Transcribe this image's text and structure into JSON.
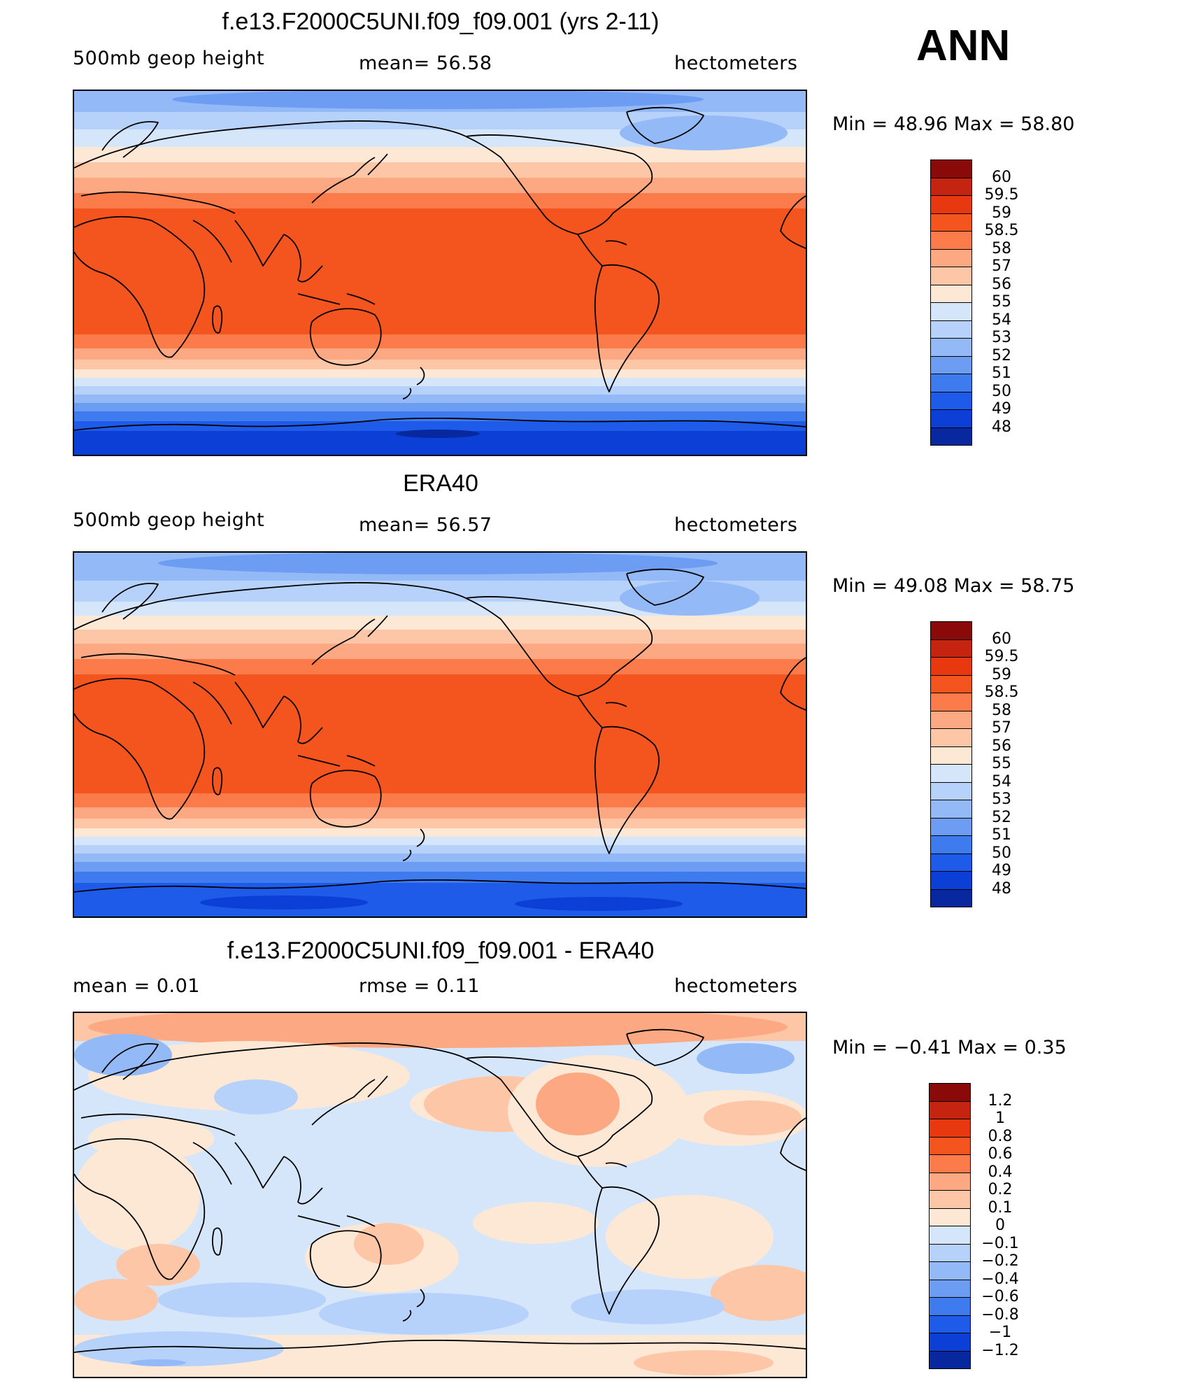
{
  "season": "ANN",
  "colors": {
    "warm": [
      "#fde8d6",
      "#fdc6a6",
      "#fca882",
      "#fb7b4b",
      "#f4541e",
      "#e8380f",
      "#c52410",
      "#8a0a0a"
    ],
    "cool": [
      "#d5e6fb",
      "#b6d2fa",
      "#94b9f7",
      "#6d9df3",
      "#3e7bef",
      "#1d5be8",
      "#0c3fd6",
      "#07289e",
      "#040e6e"
    ]
  },
  "panels": [
    {
      "title": "f.e13.F2000C5UNI.f09_f09.001 (yrs 2-11)",
      "left_label": "500mb  geop  height",
      "center_label": "mean=   56.58",
      "right_label": "hectometers",
      "minmax": "Min  =     48.96  Max  =     58.80"
    },
    {
      "title": "ERA40",
      "left_label": "500mb  geop  height",
      "center_label": "mean=   56.57",
      "right_label": "hectometers",
      "minmax": "Min  =     49.08  Max  =     58.75"
    },
    {
      "title": "f.e13.F2000C5UNI.f09_f09.001 - ERA40",
      "left_label": "mean  =      0.01",
      "center_label": "rmse  =     0.11",
      "right_label": "hectometers",
      "minmax": "Min  =    −0.41  Max  =      0.35"
    }
  ],
  "chart_data": [
    {
      "type": "heatmap",
      "title": "f.e13.F2000C5UNI.f09_f09.001 (yrs 2-11)",
      "variable": "500mb geop height",
      "units": "hectometers",
      "mean": 56.58,
      "min": 48.96,
      "max": 58.8,
      "colorbar_levels": [
        "60",
        "59.5",
        "59",
        "58.5",
        "58",
        "57",
        "56",
        "55",
        "54",
        "53",
        "52",
        "51",
        "50",
        "49",
        "48"
      ]
    },
    {
      "type": "heatmap",
      "title": "ERA40",
      "variable": "500mb geop height",
      "units": "hectometers",
      "mean": 56.57,
      "min": 49.08,
      "max": 58.75,
      "colorbar_levels": [
        "60",
        "59.5",
        "59",
        "58.5",
        "58",
        "57",
        "56",
        "55",
        "54",
        "53",
        "52",
        "51",
        "50",
        "49",
        "48"
      ]
    },
    {
      "type": "heatmap",
      "title": "f.e13.F2000C5UNI.f09_f09.001 - ERA40",
      "units": "hectometers",
      "mean": 0.01,
      "rmse": 0.11,
      "min": -0.41,
      "max": 0.35,
      "colorbar_levels": [
        "1.2",
        "1",
        "0.8",
        "0.6",
        "0.4",
        "0.2",
        "0.1",
        "0",
        "−0.1",
        "−0.2",
        "−0.4",
        "−0.6",
        "−0.8",
        "−1",
        "−1.2"
      ]
    }
  ]
}
